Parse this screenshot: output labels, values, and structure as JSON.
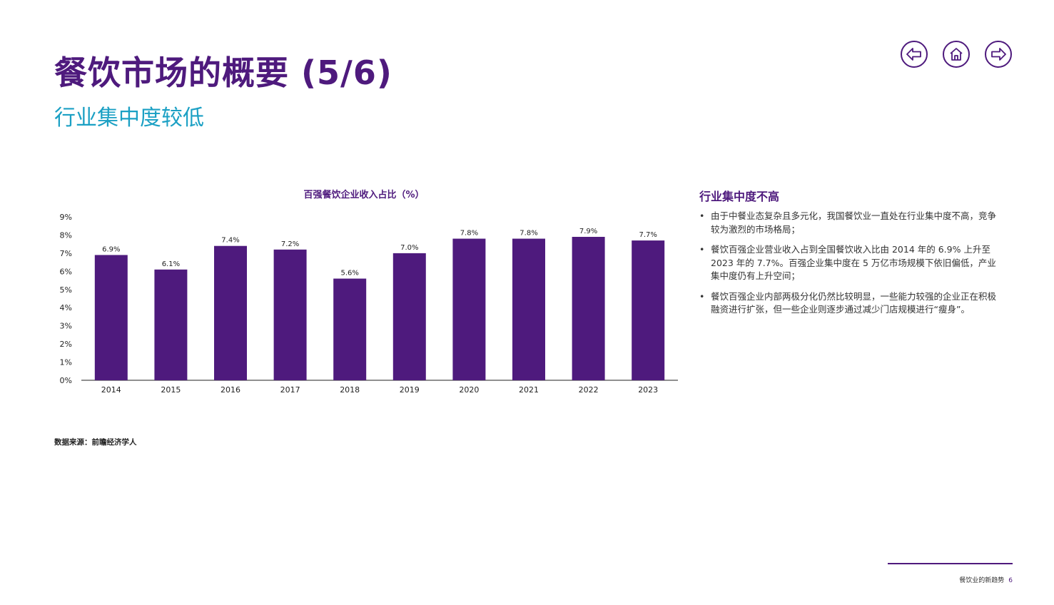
{
  "header": {
    "title": "餐饮市场的概要 (5/6)",
    "subtitle": "行业集中度较低"
  },
  "nav": {
    "back_icon": "arrow-left-icon",
    "home_icon": "home-icon",
    "forward_icon": "arrow-right-icon",
    "color": "#4e1a7d"
  },
  "chart_data": {
    "type": "bar",
    "title": "百强餐饮企业收入占比（%）",
    "categories": [
      "2014",
      "2015",
      "2016",
      "2017",
      "2018",
      "2019",
      "2020",
      "2021",
      "2022",
      "2023"
    ],
    "values": [
      6.9,
      6.1,
      7.4,
      7.2,
      5.6,
      7.0,
      7.8,
      7.8,
      7.9,
      7.7
    ],
    "value_labels": [
      "6.9%",
      "6.1%",
      "7.4%",
      "7.2%",
      "5.6%",
      "7.0%",
      "7.8%",
      "7.8%",
      "7.9%",
      "7.7%"
    ],
    "y_ticks": [
      "0%",
      "1%",
      "2%",
      "3%",
      "4%",
      "5%",
      "6%",
      "7%",
      "8%",
      "9%"
    ],
    "ylim": [
      0,
      9
    ],
    "xlabel": "",
    "ylabel": "",
    "grid": false,
    "bar_color": "#4e1a7d"
  },
  "side": {
    "title": "行业集中度不高",
    "bullets": [
      "由于中餐业态复杂且多元化，我国餐饮业一直处在行业集中度不高，竞争较为激烈的市场格局；",
      "餐饮百强企业营业收入占到全国餐饮收入比由 2014 年的 6.9% 上升至 2023 年的 7.7%。百强企业集中度在 5 万亿市场规模下依旧偏低，产业集中度仍有上升空间；",
      "餐饮百强企业内部两极分化仍然比较明显，一些能力较强的企业正在积极融资进行扩张，但一些企业则逐步通过减少门店规模进行“瘦身”。"
    ]
  },
  "source": "数据来源：前瞻经济学人",
  "footer": {
    "label": "餐饮业的新趋势",
    "page": "6"
  }
}
